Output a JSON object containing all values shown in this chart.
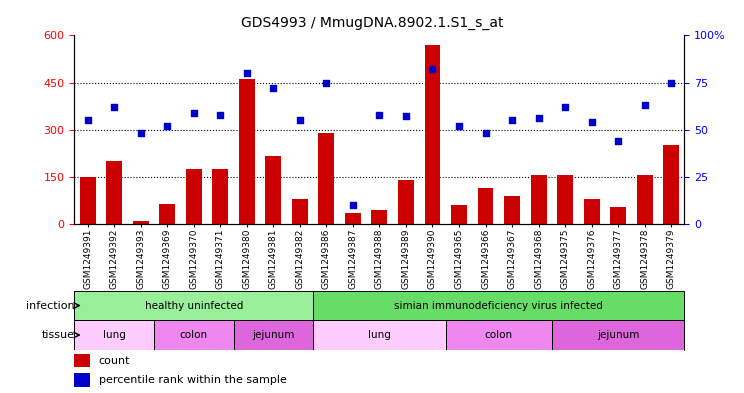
{
  "title": "GDS4993 / MmugDNA.8902.1.S1_s_at",
  "samples": [
    "GSM1249391",
    "GSM1249392",
    "GSM1249393",
    "GSM1249369",
    "GSM1249370",
    "GSM1249371",
    "GSM1249380",
    "GSM1249381",
    "GSM1249382",
    "GSM1249386",
    "GSM1249387",
    "GSM1249388",
    "GSM1249389",
    "GSM1249390",
    "GSM1249365",
    "GSM1249366",
    "GSM1249367",
    "GSM1249368",
    "GSM1249375",
    "GSM1249376",
    "GSM1249377",
    "GSM1249378",
    "GSM1249379"
  ],
  "counts": [
    150,
    200,
    10,
    65,
    175,
    175,
    460,
    215,
    80,
    290,
    35,
    45,
    140,
    570,
    60,
    115,
    90,
    155,
    155,
    80,
    55,
    155,
    250
  ],
  "percentiles": [
    55,
    62,
    48,
    52,
    59,
    58,
    80,
    72,
    55,
    75,
    10,
    58,
    57,
    82,
    52,
    48,
    55,
    56,
    62,
    54,
    44,
    63,
    75
  ],
  "bar_color": "#cc0000",
  "dot_color": "#0000cc",
  "ylim_left": [
    0,
    600
  ],
  "ylim_right": [
    0,
    100
  ],
  "yticks_left": [
    0,
    150,
    300,
    450,
    600
  ],
  "yticks_right": [
    0,
    25,
    50,
    75,
    100
  ],
  "infection_groups": [
    {
      "label": "healthy uninfected",
      "start": 0,
      "end": 9,
      "color": "#99ee99"
    },
    {
      "label": "simian immunodeficiency virus infected",
      "start": 9,
      "end": 23,
      "color": "#66dd66"
    }
  ],
  "tissue_groups": [
    {
      "label": "lung",
      "start": 0,
      "end": 3,
      "color": "#ffccff"
    },
    {
      "label": "colon",
      "start": 3,
      "end": 6,
      "color": "#ee88ee"
    },
    {
      "label": "jejunum",
      "start": 6,
      "end": 9,
      "color": "#dd66dd"
    },
    {
      "label": "lung",
      "start": 9,
      "end": 14,
      "color": "#ffccff"
    },
    {
      "label": "colon",
      "start": 14,
      "end": 18,
      "color": "#ee88ee"
    },
    {
      "label": "jejunum",
      "start": 18,
      "end": 23,
      "color": "#dd66dd"
    }
  ],
  "infection_label": "infection",
  "tissue_label": "tissue",
  "legend_count": "count",
  "legend_percentile": "percentile rank within the sample",
  "bg_color": "#ffffff"
}
